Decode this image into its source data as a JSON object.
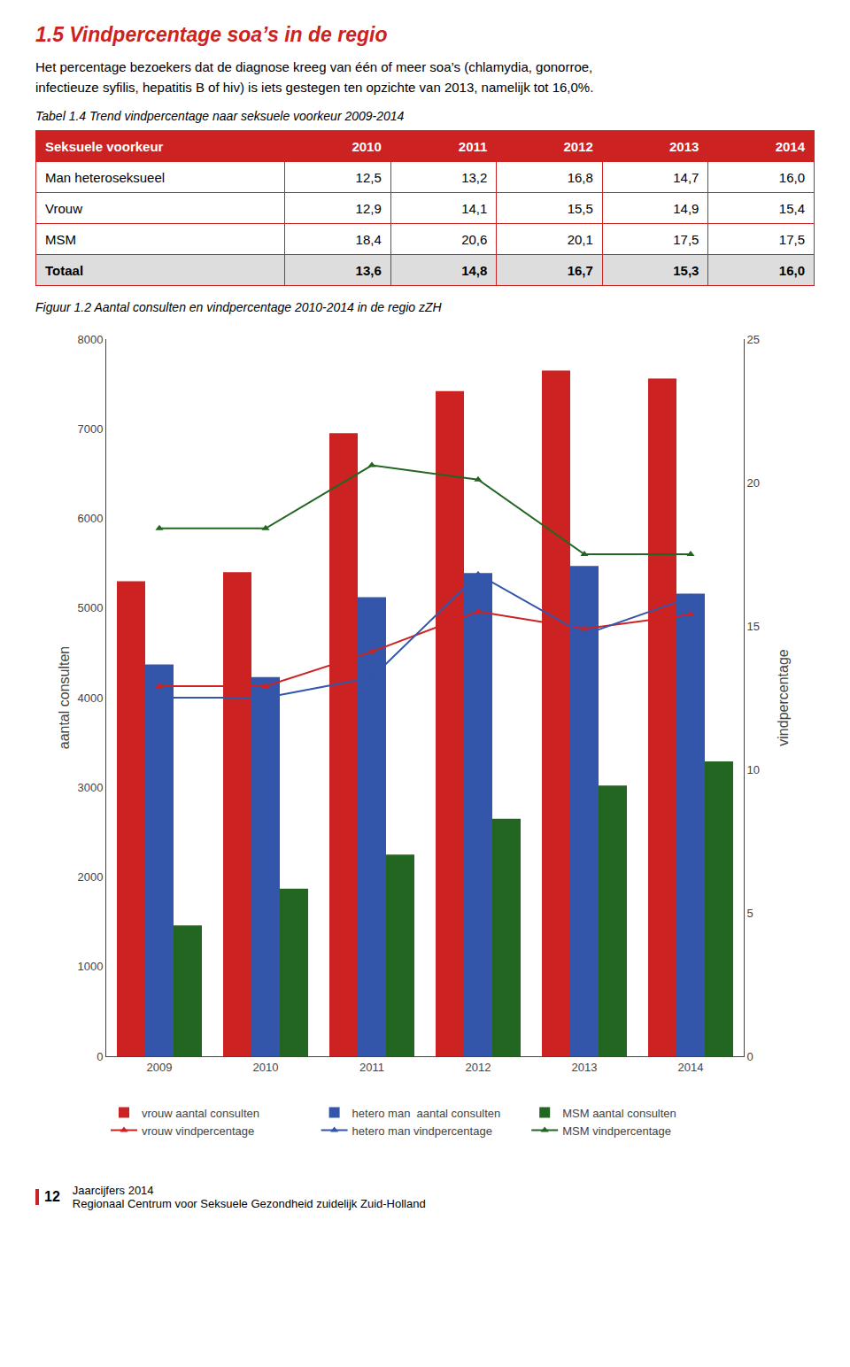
{
  "page_title": {
    "text": "1.5   Vindpercentage soa’s in de regio",
    "color": "#cc2222"
  },
  "body_text": [
    "Het percentage bezoekers dat de diagnose kreeg van één of meer soa’s  (chlamydia, gonorroe,",
    "infectieuze syfilis, hepatitis B of hiv) is iets gestegen ten opzichte van 2013, namelijk tot 16,0%."
  ],
  "footer": {
    "page": "12",
    "lines": [
      "Jaarcijfers 2014",
      "Regionaal Centrum voor Seksuele Gezondheid zuidelijk Zuid-Holland"
    ]
  },
  "chart_data": [
    {
      "type": "table",
      "title": "Tabel 1.4  Trend vindpercentage naar seksuele voorkeur 2009-2014",
      "columns": [
        "Seksuele voorkeur",
        "2010",
        "2011",
        "2012",
        "2013",
        "2014"
      ],
      "rows": [
        [
          "Man heteroseksueel",
          "12,5",
          "13,2",
          "16,8",
          "14,7",
          "16,0"
        ],
        [
          "Vrouw",
          "12,9",
          "14,1",
          "15,5",
          "14,9",
          "15,4"
        ],
        [
          "MSM",
          "18,4",
          "20,6",
          "20,1",
          "17,5",
          "17,5"
        ],
        [
          "Totaal",
          "13,6",
          "14,8",
          "16,7",
          "15,3",
          "16,0"
        ]
      ],
      "header_color": "#cc2222",
      "header_text_color": "#ffffff",
      "total_color": "#dddddd",
      "border_color": "#cc2222"
    },
    {
      "type": "bar",
      "title": "Figuur 1.2  Aantal consulten en vindpercentage 2010-2014 in de regio zZH",
      "categories": [
        "2009",
        "2010",
        "2011",
        "2012",
        "2013",
        "2014"
      ],
      "series": [
        {
          "name": "vrouw aantal consulten",
          "type": "bar",
          "color": "#cc2222",
          "values": [
            5300,
            5400,
            6950,
            7420,
            7650,
            7560
          ]
        },
        {
          "name": "hetero man  aantal consulten",
          "type": "bar",
          "color": "#3355aa",
          "values": [
            4370,
            4230,
            5120,
            5390,
            5470,
            5160
          ]
        },
        {
          "name": "MSM aantal consulten",
          "type": "bar",
          "color": "#226622",
          "values": [
            1460,
            1870,
            2250,
            2650,
            3020,
            3290
          ]
        },
        {
          "name": "vrouw vindpercentage",
          "type": "line",
          "axis": "y2",
          "marker": "triangle-up",
          "line_style": "solid",
          "color": "#cc2222",
          "values": [
            12.9,
            12.9,
            14.1,
            15.5,
            14.9,
            15.4
          ]
        },
        {
          "name": "hetero man vindpercentage",
          "type": "line",
          "axis": "y2",
          "marker": "triangle-up",
          "line_style": "solid",
          "color": "#3355aa",
          "values": [
            12.5,
            12.5,
            13.2,
            16.8,
            14.7,
            16.0
          ]
        },
        {
          "name": "MSM vindpercentage",
          "type": "line",
          "axis": "y2",
          "marker": "triangle-up",
          "line_style": "solid",
          "color": "#226622",
          "values": [
            18.4,
            18.4,
            20.6,
            20.1,
            17.5,
            17.5
          ]
        }
      ],
      "ylabel": "aantal consulten",
      "y2label": "vindpercentage",
      "ylim": [
        0,
        8000
      ],
      "yticks": [
        0,
        1000,
        2000,
        3000,
        4000,
        5000,
        6000,
        7000,
        8000
      ],
      "y2lim": [
        0,
        25
      ],
      "y2ticks": [
        0,
        5,
        10,
        15,
        20,
        25
      ],
      "grid": false,
      "legend": "bottom"
    }
  ]
}
